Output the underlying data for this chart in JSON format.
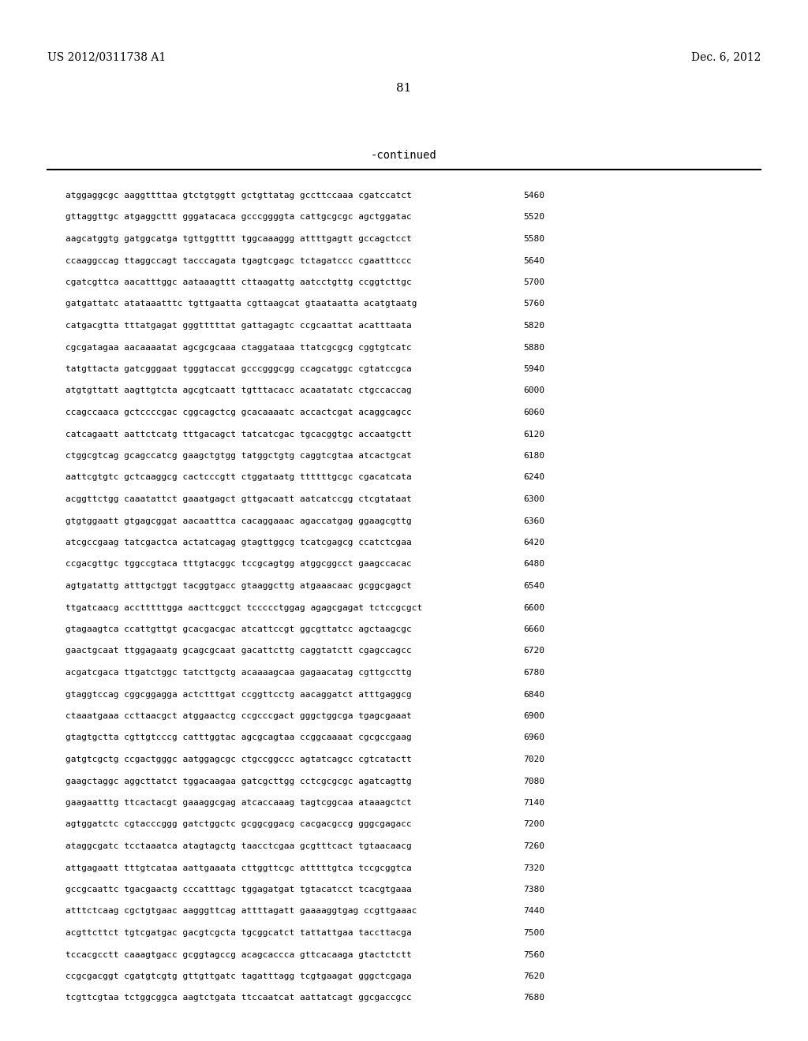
{
  "header_left": "US 2012/0311738 A1",
  "header_right": "Dec. 6, 2012",
  "page_number": "81",
  "continued_label": "-continued",
  "background_color": "#ffffff",
  "text_color": "#000000",
  "sequence_lines": [
    [
      "atggaggcgc aaggttttaa gtctgtggtt gctgttatag gccttccaaa cgatccatct",
      "5460"
    ],
    [
      "gttaggttgc atgaggcttt gggatacaca gcccggggta cattgcgcgc agctggatac",
      "5520"
    ],
    [
      "aagcatggtg gatggcatga tgttggtttt tggcaaaggg attttgagtt gccagctcct",
      "5580"
    ],
    [
      "ccaaggccag ttaggccagt tacccagata tgagtcgagc tctagatccc cgaatttccc",
      "5640"
    ],
    [
      "cgatcgttca aacatttggc aataaagttt cttaagattg aatcctgttg ccggtcttgc",
      "5700"
    ],
    [
      "gatgattatc atataaatttc tgttgaatta cgttaagcat gtaataatta acatgtaatg",
      "5760"
    ],
    [
      "catgacgtta tttatgagat gggtttttat gattagagtc ccgcaattat acatttaata",
      "5820"
    ],
    [
      "cgcgatagaa aacaaaatat agcgcgcaaa ctaggataaa ttatcgcgcg cggtgtcatc",
      "5880"
    ],
    [
      "tatgttacta gatcgggaat tgggtaccat gcccgggcgg ccagcatggc cgtatccgca",
      "5940"
    ],
    [
      "atgtgttatt aagttgtcta agcgtcaatt tgtttacacc acaatatatc ctgccaccag",
      "6000"
    ],
    [
      "ccagccaaca gctccccgac cggcagctcg gcacaaaatc accactcgat acaggcagcc",
      "6060"
    ],
    [
      "catcagaatt aattctcatg tttgacagct tatcatcgac tgcacggtgc accaatgctt",
      "6120"
    ],
    [
      "ctggcgtcag gcagccatcg gaagctgtgg tatggctgtg caggtcgtaa atcactgcat",
      "6180"
    ],
    [
      "aattcgtgtc gctcaaggcg cactcccgtt ctggataatg ttttttgcgc cgacatcata",
      "6240"
    ],
    [
      "acggttctgg caaatattct gaaatgagct gttgacaatt aatcatccgg ctcgtataat",
      "6300"
    ],
    [
      "gtgtggaatt gtgagcggat aacaatttca cacaggaaac agaccatgag ggaagcgttg",
      "6360"
    ],
    [
      "atcgccgaag tatcgactca actatcagag gtagttggcg tcatcgagcg ccatctcgaa",
      "6420"
    ],
    [
      "ccgacgttgc tggccgtaca tttgtacggc tccgcagtgg atggcggcct gaagccacac",
      "6480"
    ],
    [
      "agtgatattg atttgctggt tacggtgacc gtaaggcttg atgaaacaac gcggcgagct",
      "6540"
    ],
    [
      "ttgatcaacg acctttttgga aacttcggct tccccctggag agagcgagat tctccgcgct",
      "6600"
    ],
    [
      "gtagaagtca ccattgttgt gcacgacgac atcattccgt ggcgttatcc agctaagcgc",
      "6660"
    ],
    [
      "gaactgcaat ttggagaatg gcagcgcaat gacattcttg caggtatctt cgagccagcc",
      "6720"
    ],
    [
      "acgatcgaca ttgatctggc tatcttgctg acaaaagcaa gagaacatag cgttgccttg",
      "6780"
    ],
    [
      "gtaggtccag cggcggagga actctttgat ccggttcctg aacaggatct atttgaggcg",
      "6840"
    ],
    [
      "ctaaatgaaa ccttaacgct atggaactcg ccgcccgact gggctggcga tgagcgaaat",
      "6900"
    ],
    [
      "gtagtgctta cgttgtcccg catttggtac agcgcagtaa ccggcaaaat cgcgccgaag",
      "6960"
    ],
    [
      "gatgtcgctg ccgactgggc aatggagcgc ctgccggccc agtatcagcc cgtcatactt",
      "7020"
    ],
    [
      "gaagctaggc aggcttatct tggacaagaa gatcgcttgg cctcgcgcgc agatcagttg",
      "7080"
    ],
    [
      "gaagaatttg ttcactacgt gaaaggcgag atcaccaaag tagtcggcaa ataaagctct",
      "7140"
    ],
    [
      "agtggatctc cgtacccggg gatctggctc gcggcggacg cacgacgccg gggcgagacc",
      "7200"
    ],
    [
      "ataggcgatc tcctaaatca atagtagctg taacctcgaa gcgtttcact tgtaacaacg",
      "7260"
    ],
    [
      "attgagaatt tttgtcataa aattgaaata cttggttcgc atttttgtca tccgcggtca",
      "7320"
    ],
    [
      "gccgcaattc tgacgaactg cccatttagc tggagatgat tgtacatcct tcacgtgaaa",
      "7380"
    ],
    [
      "atttctcaag cgctgtgaac aagggttcag attttagatt gaaaaggtgag ccgttgaaac",
      "7440"
    ],
    [
      "acgttcttct tgtcgatgac gacgtcgcta tgcggcatct tattattgaa taccttacga",
      "7500"
    ],
    [
      "tccacgcctt caaagtgacc gcggtagccg acagcaccca gttcacaaga gtactctctt",
      "7560"
    ],
    [
      "ccgcgacggt cgatgtcgtg gttgttgatc tagatttagg tcgtgaagat gggctcgaga",
      "7620"
    ],
    [
      "tcgttcgtaa tctggcggca aagtctgata ttccaatcat aattatcagt ggcgaccgcc",
      "7680"
    ]
  ]
}
